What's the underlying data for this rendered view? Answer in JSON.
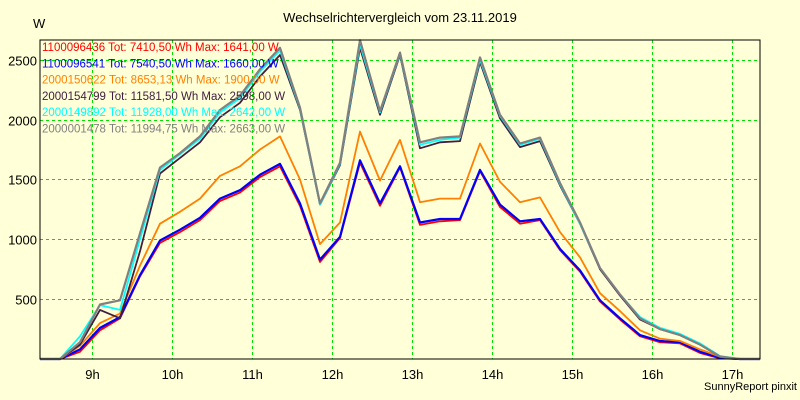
{
  "chart_data": {
    "type": "line",
    "title": "Wechselrichtervergleich vom 23.11.2019",
    "ylabel": "W",
    "xlabel": "",
    "credit": "SunnyReport pinxit",
    "xlim": [
      8.35,
      17.35
    ],
    "ylim": [
      0,
      2665
    ],
    "grid": true,
    "legend_position": "top-left",
    "x_ticks": [
      {
        "value": 9,
        "label": "9h"
      },
      {
        "value": 10,
        "label": "10h"
      },
      {
        "value": 11,
        "label": "11h"
      },
      {
        "value": 12,
        "label": "12h"
      },
      {
        "value": 13,
        "label": "13h"
      },
      {
        "value": 14,
        "label": "14h"
      },
      {
        "value": 15,
        "label": "15h"
      },
      {
        "value": 16,
        "label": "16h"
      },
      {
        "value": 17,
        "label": "17h"
      }
    ],
    "y_ticks": [
      {
        "value": 500,
        "label": "500"
      },
      {
        "value": 1000,
        "label": "1000"
      },
      {
        "value": 1500,
        "label": "1500"
      },
      {
        "value": 2000,
        "label": "2000"
      },
      {
        "value": 2500,
        "label": "2500"
      }
    ],
    "x": [
      8.35,
      8.6,
      8.85,
      9.1,
      9.35,
      9.6,
      9.85,
      10.1,
      10.35,
      10.6,
      10.85,
      11.1,
      11.35,
      11.6,
      11.85,
      12.1,
      12.35,
      12.6,
      12.85,
      13.1,
      13.35,
      13.6,
      13.85,
      14.1,
      14.35,
      14.6,
      14.85,
      15.1,
      15.35,
      15.6,
      15.85,
      16.1,
      16.35,
      16.6,
      16.85,
      17.1,
      17.35
    ],
    "series": [
      {
        "name": "1100096436",
        "legend": "1100096436 Tot: 7410,50 Wh Max: 1641,00 W",
        "color": "#ff0000",
        "values": [
          0,
          0,
          60,
          240,
          340,
          690,
          970,
          1060,
          1160,
          1320,
          1390,
          1520,
          1610,
          1280,
          810,
          1010,
          1641,
          1280,
          1600,
          1120,
          1150,
          1160,
          1570,
          1270,
          1130,
          1160,
          910,
          730,
          480,
          330,
          190,
          140,
          130,
          50,
          5,
          0,
          0
        ]
      },
      {
        "name": "1100096541",
        "legend": "1100096541 Tot: 7540,50 Wh Max: 1660,00 W",
        "color": "#0000ff",
        "values": [
          0,
          0,
          80,
          260,
          350,
          700,
          990,
          1080,
          1180,
          1340,
          1410,
          1540,
          1630,
          1300,
          830,
          1020,
          1660,
          1300,
          1610,
          1140,
          1170,
          1170,
          1580,
          1290,
          1150,
          1170,
          920,
          740,
          490,
          340,
          200,
          150,
          140,
          60,
          10,
          0,
          0
        ]
      },
      {
        "name": "2000150622",
        "legend": "2000150622 Tot: 8653,13 Wh Max: 1900,00 W",
        "color": "#ff8000",
        "values": [
          0,
          0,
          110,
          300,
          380,
          780,
          1130,
          1230,
          1340,
          1530,
          1610,
          1750,
          1860,
          1500,
          960,
          1140,
          1900,
          1490,
          1830,
          1310,
          1340,
          1340,
          1800,
          1480,
          1310,
          1350,
          1060,
          850,
          550,
          400,
          240,
          170,
          150,
          80,
          20,
          0,
          0
        ]
      },
      {
        "name": "2000154799",
        "legend": "2000154799 Tot: 11581,50 Wh Max: 2598,00 W",
        "color": "#402040",
        "values": [
          0,
          0,
          120,
          410,
          340,
          900,
          1550,
          1680,
          1810,
          2020,
          2140,
          2360,
          2540,
          2080,
          1290,
          1620,
          2600,
          2040,
          2540,
          1760,
          1810,
          1820,
          2480,
          2010,
          1770,
          1820,
          1450,
          1130,
          750,
          530,
          330,
          250,
          200,
          120,
          20,
          0,
          0
        ]
      },
      {
        "name": "2000149892",
        "legend": "2000149892 Tot: 11928,00 Wh Max: 2642,00 W",
        "color": "#00ffff",
        "values": [
          0,
          0,
          190,
          450,
          410,
          1000,
          1580,
          1710,
          1840,
          2060,
          2180,
          2400,
          2580,
          2090,
          1290,
          1630,
          2630,
          2060,
          2550,
          1790,
          1830,
          1850,
          2500,
          2030,
          1790,
          1840,
          1460,
          1130,
          760,
          540,
          350,
          260,
          210,
          130,
          25,
          0,
          0
        ]
      },
      {
        "name": "2000001478",
        "legend": "2000001478 Tot: 11994,75 Wh Max: 2663,00 W",
        "color": "#808080",
        "values": [
          0,
          0,
          140,
          455,
          490,
          1050,
          1600,
          1720,
          1860,
          2080,
          2200,
          2420,
          2600,
          2100,
          1300,
          1640,
          2663,
          2070,
          2560,
          1810,
          1850,
          1860,
          2520,
          2040,
          1800,
          1850,
          1470,
          1140,
          760,
          540,
          340,
          250,
          200,
          120,
          20,
          0,
          0
        ]
      }
    ],
    "colors": {
      "background": "#ffffd8",
      "grid": "#00e000",
      "axis": "#000000"
    }
  }
}
